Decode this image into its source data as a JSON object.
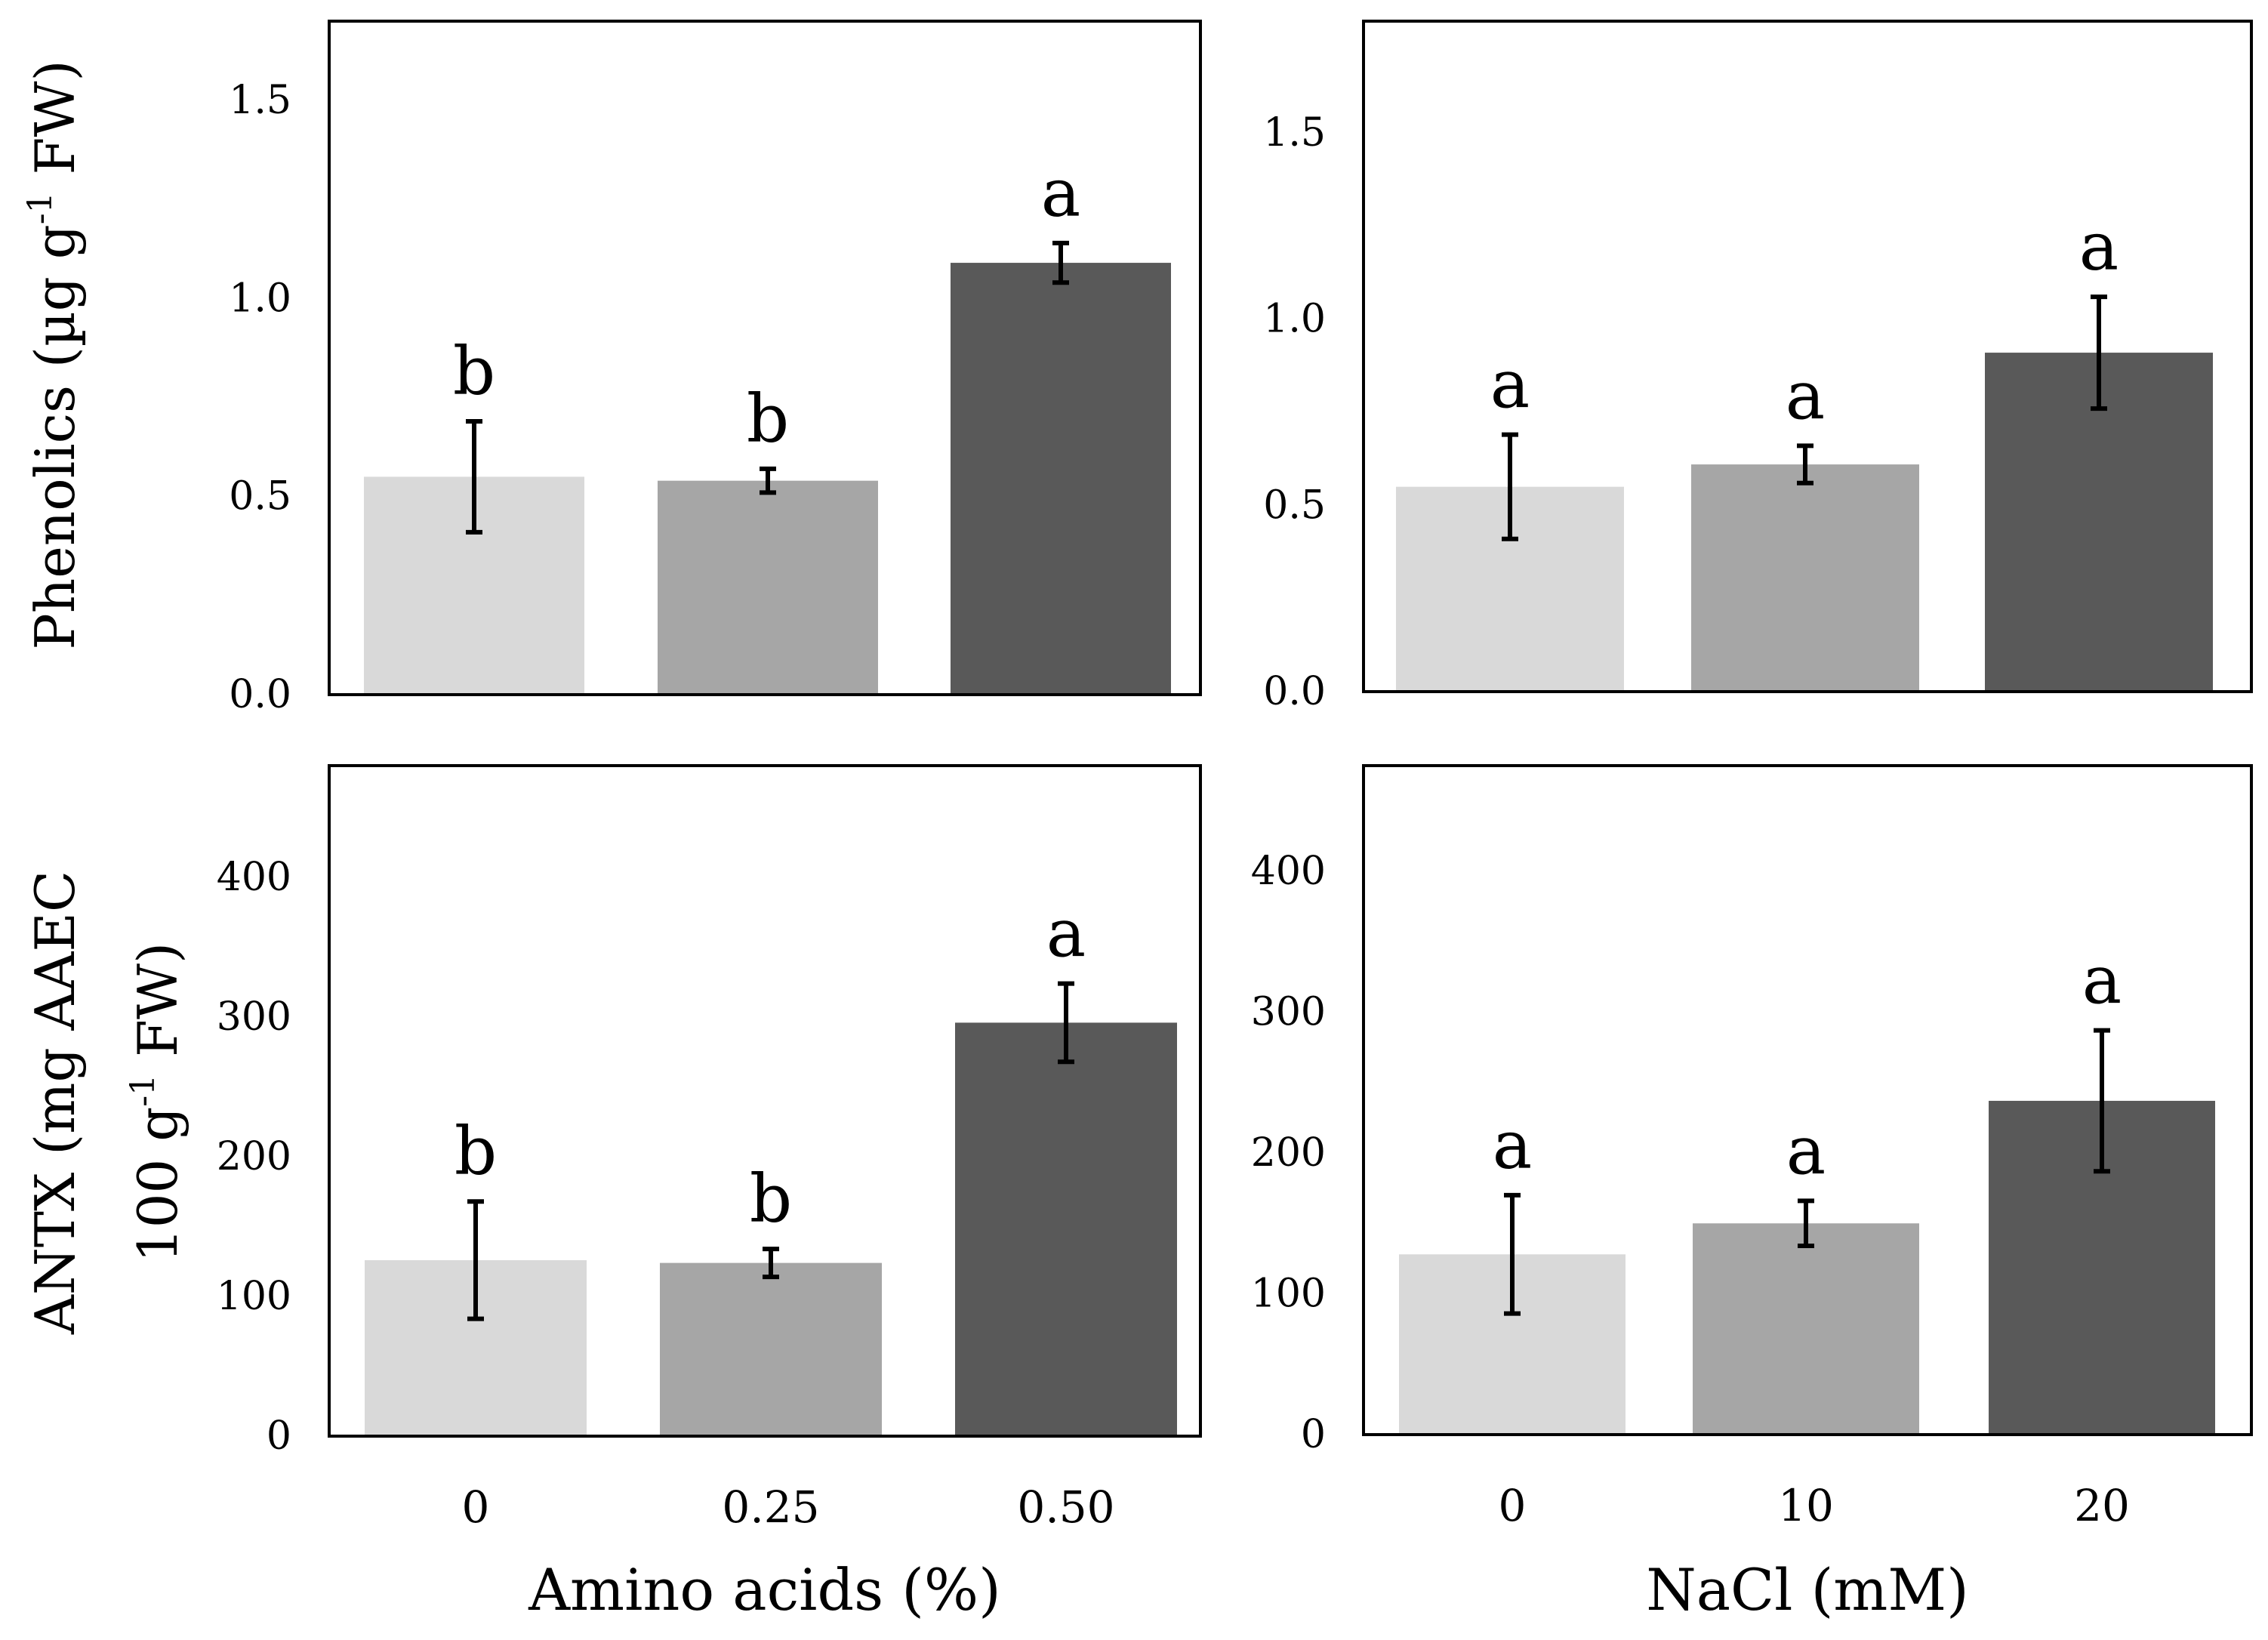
{
  "figure": {
    "y_axis_labels": {
      "top": {
        "pre": "Phenolics (µg g",
        "sup": "-1",
        "post": " FW)"
      },
      "bottom_line1": "ANTX (mg AAEC",
      "bottom_line2": {
        "pre": "100 g",
        "sup": "-1",
        "post": "  FW)"
      }
    },
    "x_axis_labels": {
      "left": "Amino acids  (%)",
      "right": "NaCl (mM)"
    }
  },
  "chart_data": [
    {
      "id": "phenolics-amino",
      "type": "bar",
      "title": "",
      "xlabel": "Amino acids  (%)",
      "ylabel": "Phenolics (µg g-1 FW)",
      "ylim": [
        0,
        1.7
      ],
      "yticks": [
        "0.0",
        "0.5",
        "1.0",
        "1.5"
      ],
      "ytick_values": [
        0,
        0.5,
        1.0,
        1.5
      ],
      "categories": [
        "0",
        "0.25",
        "0.50"
      ],
      "values": [
        0.55,
        0.54,
        1.09
      ],
      "errors": [
        0.14,
        0.03,
        0.05
      ],
      "letters": [
        "b",
        "b",
        "a"
      ],
      "colors": [
        "#d9d9d9",
        "#a6a6a6",
        "#595959"
      ]
    },
    {
      "id": "phenolics-nacl",
      "type": "bar",
      "title": "",
      "xlabel": "NaCl (mM)",
      "ylabel": "Phenolics (µg g-1 FW)",
      "ylim": [
        0,
        1.8
      ],
      "yticks": [
        "0.0",
        "0.5",
        "1.0",
        "1.5"
      ],
      "ytick_values": [
        0,
        0.5,
        1.0,
        1.5
      ],
      "categories": [
        "0",
        "10",
        "20"
      ],
      "values": [
        0.55,
        0.61,
        0.91
      ],
      "errors": [
        0.14,
        0.05,
        0.15
      ],
      "letters": [
        "a",
        "a",
        "a"
      ],
      "colors": [
        "#d9d9d9",
        "#a6a6a6",
        "#595959"
      ]
    },
    {
      "id": "antx-amino",
      "type": "bar",
      "title": "",
      "xlabel": "Amino acids  (%)",
      "ylabel": "ANTX (mg AAEC 100 g-1 FW)",
      "ylim": [
        0,
        480
      ],
      "yticks": [
        "0",
        "100",
        "200",
        "300",
        "400"
      ],
      "ytick_values": [
        0,
        100,
        200,
        300,
        400
      ],
      "categories": [
        "0",
        "0.25",
        "0.50"
      ],
      "values": [
        126,
        124,
        296
      ],
      "errors": [
        42,
        10,
        28
      ],
      "letters": [
        "b",
        "b",
        "a"
      ],
      "colors": [
        "#d9d9d9",
        "#a6a6a6",
        "#595959"
      ]
    },
    {
      "id": "antx-nacl",
      "type": "bar",
      "title": "",
      "xlabel": "NaCl (mM)",
      "ylabel": "ANTX (mg AAEC 100 g-1 FW)",
      "ylim": [
        0,
        475
      ],
      "yticks": [
        "0",
        "100",
        "200",
        "300",
        "400"
      ],
      "ytick_values": [
        0,
        100,
        200,
        300,
        400
      ],
      "categories": [
        "0",
        "10",
        "20"
      ],
      "values": [
        128,
        150,
        237
      ],
      "errors": [
        42,
        16,
        50
      ],
      "letters": [
        "a",
        "a",
        "a"
      ],
      "colors": [
        "#d9d9d9",
        "#a6a6a6",
        "#595959"
      ]
    }
  ]
}
